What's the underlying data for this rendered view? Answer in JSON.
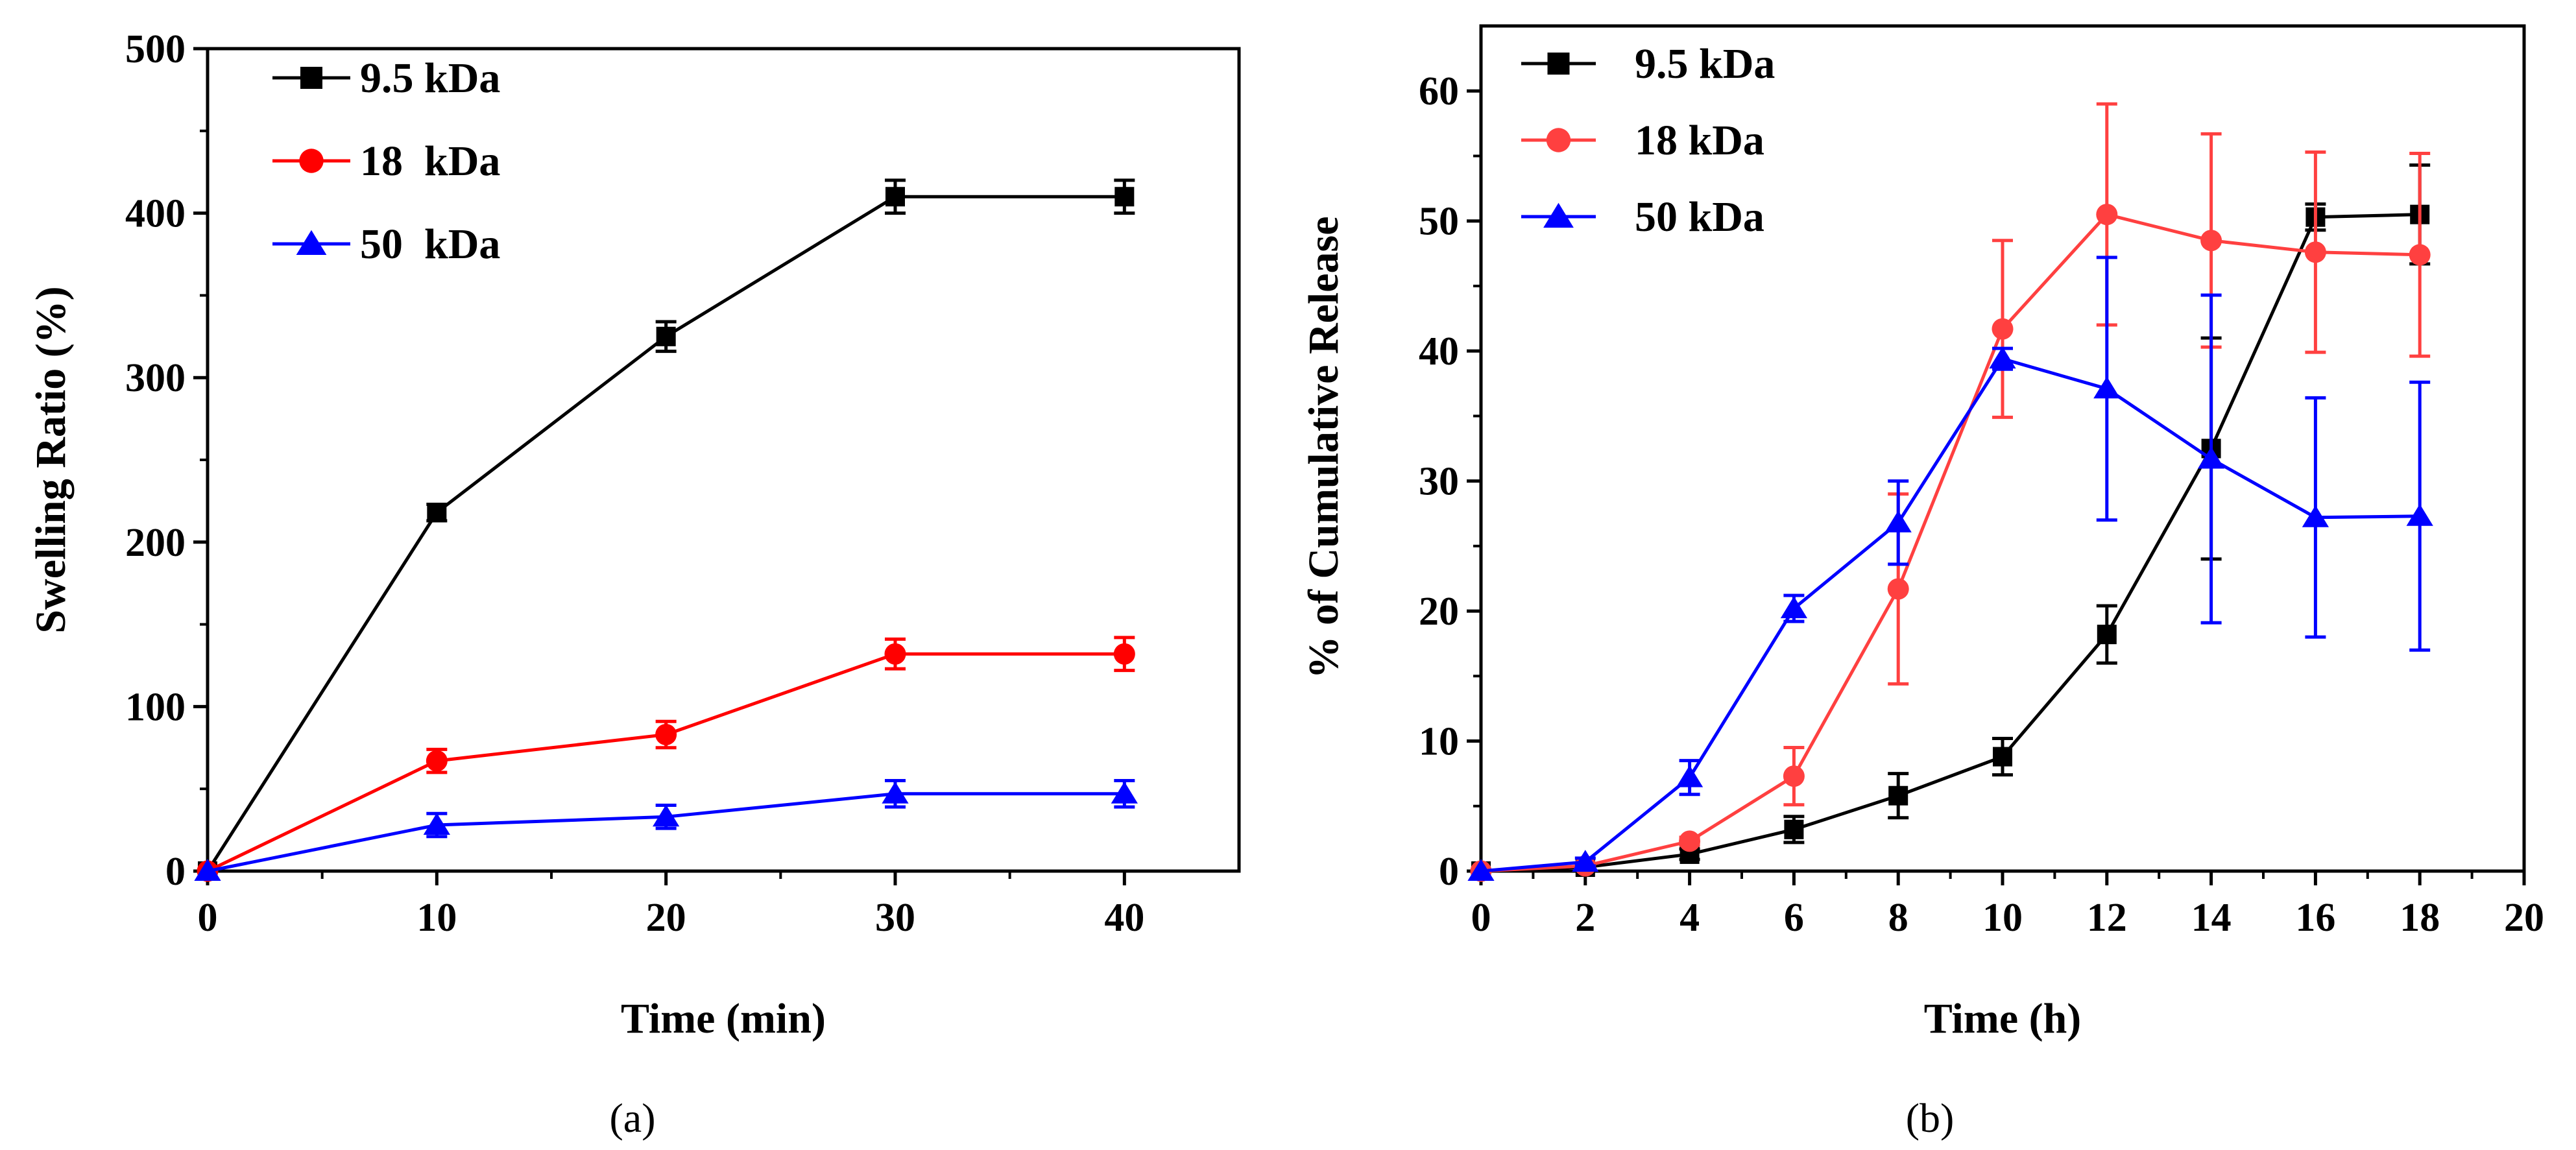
{
  "chart_data": [
    {
      "type": "line",
      "panel_label": "(a)",
      "xlabel": "Time (min)",
      "ylabel": "Swelling Ratio (%)",
      "xlim": [
        0,
        45
      ],
      "ylim": [
        0,
        500
      ],
      "xticks": [
        0,
        10,
        20,
        30,
        40
      ],
      "yticks": [
        0,
        100,
        200,
        300,
        400,
        500
      ],
      "x": [
        0,
        10,
        20,
        30,
        40
      ],
      "legend_position": "top-left",
      "series": [
        {
          "name": "9.5 kDa",
          "color": "#000000",
          "marker": "square",
          "values": [
            0,
            218,
            325,
            410,
            410
          ],
          "errors": [
            0,
            5,
            9,
            10,
            10
          ]
        },
        {
          "name": "18  kDa",
          "color": "#ff0000",
          "marker": "circle",
          "values": [
            0,
            67,
            83,
            132,
            132
          ],
          "errors": [
            0,
            7,
            8,
            9,
            10
          ]
        },
        {
          "name": "50  kDa",
          "color": "#0000ff",
          "marker": "triangle",
          "values": [
            0,
            28,
            33,
            47,
            47
          ],
          "errors": [
            0,
            7,
            7,
            8,
            8
          ]
        }
      ]
    },
    {
      "type": "line",
      "panel_label": "(b)",
      "xlabel": "Time (h)",
      "ylabel": "% of Cumulative Release",
      "xlim": [
        0,
        20
      ],
      "ylim": [
        0,
        65
      ],
      "xticks": [
        0,
        2,
        4,
        6,
        8,
        10,
        12,
        14,
        16,
        18,
        20
      ],
      "yticks": [
        0,
        10,
        20,
        30,
        40,
        50,
        60
      ],
      "x": [
        0,
        2,
        4,
        6,
        8,
        10,
        12,
        14,
        16,
        18
      ],
      "legend_position": "top-left",
      "series": [
        {
          "name": "9.5 kDa",
          "color": "#000000",
          "marker": "square",
          "values": [
            0,
            0.3,
            1.3,
            3.2,
            5.8,
            8.8,
            18.2,
            32.5,
            50.3,
            50.5
          ],
          "errors": [
            0,
            0.2,
            0.4,
            1,
            1.7,
            1.4,
            2.2,
            8.5,
            1,
            3.8
          ]
        },
        {
          "name": "18 kDa",
          "color": "#ff4040",
          "marker": "circle",
          "values": [
            0,
            0.4,
            2.3,
            7.3,
            21.7,
            41.7,
            50.5,
            48.5,
            47.6,
            47.4
          ],
          "errors": [
            0,
            0.2,
            0.3,
            2.2,
            7.3,
            6.8,
            8.5,
            8.2,
            7.7,
            7.8
          ]
        },
        {
          "name": "50 kDa",
          "color": "#0000ff",
          "marker": "triangle",
          "values": [
            0,
            0.7,
            7.2,
            20.2,
            26.8,
            39.4,
            37.1,
            31.7,
            27.2,
            27.3
          ],
          "errors": [
            0,
            0.3,
            1.3,
            1,
            3.2,
            0.8,
            10.1,
            12.6,
            9.2,
            10.3
          ]
        }
      ]
    }
  ]
}
